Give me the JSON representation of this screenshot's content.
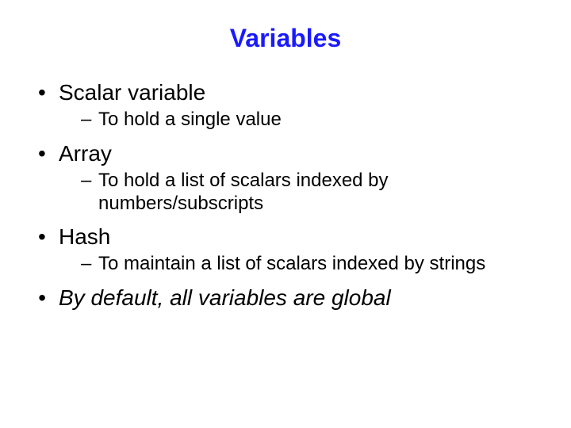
{
  "slide": {
    "title": "Variables",
    "title_color": "#1a1aff",
    "title_fontsize": 32,
    "body_color": "#000000",
    "level1_fontsize": 28,
    "level2_fontsize": 24,
    "background_color": "#ffffff",
    "bullets": [
      {
        "text": "Scalar variable",
        "italic": false,
        "sub": [
          {
            "text": "To hold a single value"
          }
        ]
      },
      {
        "text": "Array",
        "italic": false,
        "sub": [
          {
            "text": "To hold a list of scalars indexed by numbers/subscripts"
          }
        ]
      },
      {
        "text": "Hash",
        "italic": false,
        "sub": [
          {
            "text": "To maintain a list of scalars indexed by strings"
          }
        ]
      },
      {
        "text": "By default, all variables are global",
        "italic": true,
        "sub": []
      }
    ]
  }
}
